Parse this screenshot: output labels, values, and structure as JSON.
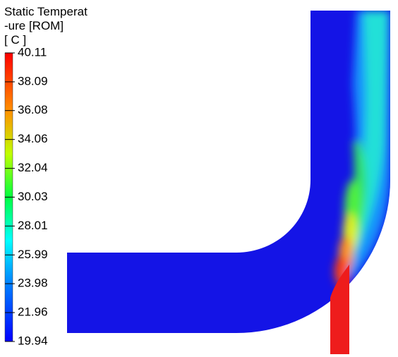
{
  "legend": {
    "title": [
      "Static Temperat",
      "-ure [ROM]",
      "[ C ]"
    ],
    "range": [
      19.94,
      40.11
    ],
    "ticks": [
      40.11,
      38.09,
      36.08,
      34.06,
      32.04,
      30.03,
      28.01,
      25.99,
      23.98,
      21.96,
      19.94
    ]
  }
}
